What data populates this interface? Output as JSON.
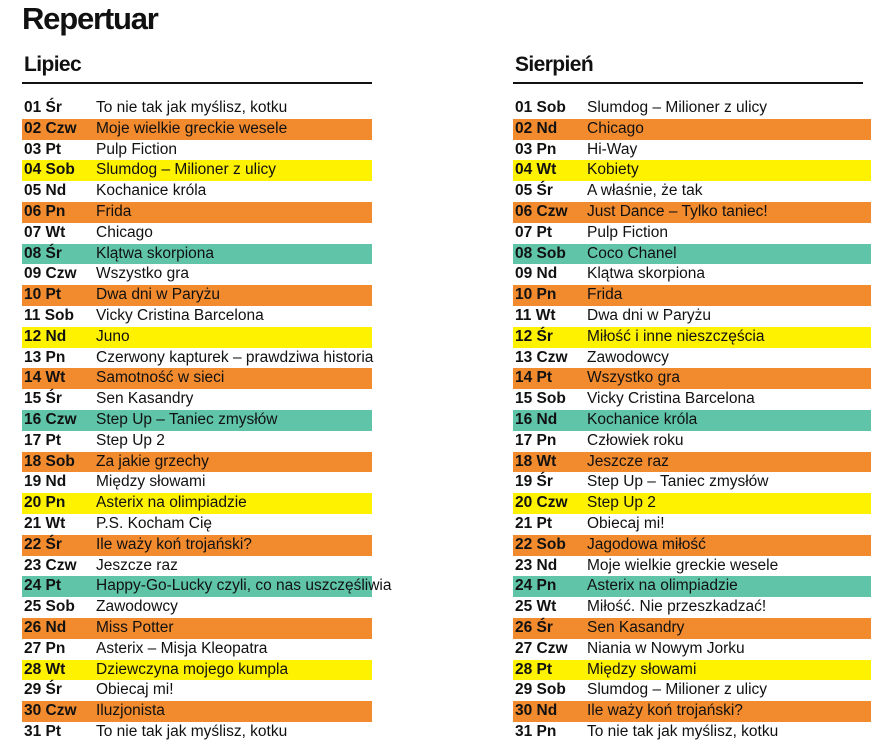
{
  "title": "Repertuar",
  "colors": {
    "orange": "#f28a2e",
    "yellow": "#fff200",
    "teal": "#5fc4a8"
  },
  "months": [
    {
      "name": "Lipiec",
      "rows": [
        {
          "day": "01 Śr",
          "film": "To nie tak jak myślisz, kotku",
          "hl": ""
        },
        {
          "day": "02 Czw",
          "film": "Moje wielkie greckie wesele",
          "hl": "orange"
        },
        {
          "day": "03 Pt",
          "film": "Pulp Fiction",
          "hl": ""
        },
        {
          "day": "04 Sob",
          "film": "Slumdog – Milioner z ulicy",
          "hl": "yellow"
        },
        {
          "day": "05 Nd",
          "film": "Kochanice króla",
          "hl": ""
        },
        {
          "day": "06 Pn",
          "film": "Frida",
          "hl": "orange"
        },
        {
          "day": "07 Wt",
          "film": "Chicago",
          "hl": ""
        },
        {
          "day": "08 Śr",
          "film": "Klątwa skorpiona",
          "hl": "teal"
        },
        {
          "day": "09 Czw",
          "film": "Wszystko gra",
          "hl": ""
        },
        {
          "day": "10 Pt",
          "film": "Dwa dni w Paryżu",
          "hl": "orange"
        },
        {
          "day": "11 Sob",
          "film": "Vicky Cristina Barcelona",
          "hl": ""
        },
        {
          "day": "12 Nd",
          "film": "Juno",
          "hl": "yellow"
        },
        {
          "day": "13 Pn",
          "film": "Czerwony kapturek – prawdziwa historia",
          "hl": ""
        },
        {
          "day": "14 Wt",
          "film": "Samotność w sieci",
          "hl": "orange"
        },
        {
          "day": "15 Śr",
          "film": "Sen Kasandry",
          "hl": ""
        },
        {
          "day": "16 Czw",
          "film": "Step Up – Taniec zmysłów",
          "hl": "teal"
        },
        {
          "day": "17 Pt",
          "film": "Step Up 2",
          "hl": ""
        },
        {
          "day": "18 Sob",
          "film": "Za jakie grzechy",
          "hl": "orange"
        },
        {
          "day": "19 Nd",
          "film": "Między słowami",
          "hl": ""
        },
        {
          "day": "20 Pn",
          "film": "Asterix na olimpiadzie",
          "hl": "yellow"
        },
        {
          "day": "21 Wt",
          "film": "P.S. Kocham Cię",
          "hl": ""
        },
        {
          "day": "22 Śr",
          "film": "Ile waży koń trojański?",
          "hl": "orange"
        },
        {
          "day": "23 Czw",
          "film": "Jeszcze raz",
          "hl": ""
        },
        {
          "day": "24 Pt",
          "film": "Happy-Go-Lucky czyli, co nas uszczęśliwia",
          "hl": "teal"
        },
        {
          "day": "25 Sob",
          "film": "Zawodowcy",
          "hl": ""
        },
        {
          "day": "26 Nd",
          "film": "Miss Potter",
          "hl": "orange"
        },
        {
          "day": "27 Pn",
          "film": "Asterix – Misja Kleopatra",
          "hl": ""
        },
        {
          "day": "28 Wt",
          "film": "Dziewczyna mojego kumpla",
          "hl": "yellow"
        },
        {
          "day": "29 Śr",
          "film": "Obiecaj mi!",
          "hl": ""
        },
        {
          "day": "30 Czw",
          "film": "Iluzjonista",
          "hl": "orange"
        },
        {
          "day": "31 Pt",
          "film": "To nie tak jak myślisz, kotku",
          "hl": ""
        }
      ]
    },
    {
      "name": "Sierpień",
      "rows": [
        {
          "day": "01 Sob",
          "film": "Slumdog – Milioner z ulicy",
          "hl": ""
        },
        {
          "day": "02 Nd",
          "film": "Chicago",
          "hl": "orange"
        },
        {
          "day": "03 Pn",
          "film": "Hi-Way",
          "hl": ""
        },
        {
          "day": "04 Wt",
          "film": "Kobiety",
          "hl": "yellow"
        },
        {
          "day": "05 Śr",
          "film": "A właśnie, że tak",
          "hl": ""
        },
        {
          "day": "06 Czw",
          "film": "Just Dance – Tylko taniec!",
          "hl": "orange"
        },
        {
          "day": "07 Pt",
          "film": "Pulp Fiction",
          "hl": ""
        },
        {
          "day": "08 Sob",
          "film": "Coco Chanel",
          "hl": "teal"
        },
        {
          "day": "09 Nd",
          "film": "Klątwa skorpiona",
          "hl": ""
        },
        {
          "day": "10 Pn",
          "film": "Frida",
          "hl": "orange"
        },
        {
          "day": "11 Wt",
          "film": "Dwa dni w Paryżu",
          "hl": ""
        },
        {
          "day": "12 Śr",
          "film": "Miłość i inne nieszczęścia",
          "hl": "yellow"
        },
        {
          "day": "13 Czw",
          "film": "Zawodowcy",
          "hl": ""
        },
        {
          "day": "14 Pt",
          "film": "Wszystko gra",
          "hl": "orange"
        },
        {
          "day": "15 Sob",
          "film": "Vicky Cristina Barcelona",
          "hl": ""
        },
        {
          "day": "16 Nd",
          "film": "Kochanice króla",
          "hl": "teal"
        },
        {
          "day": "17 Pn",
          "film": "Człowiek roku",
          "hl": ""
        },
        {
          "day": "18 Wt",
          "film": "Jeszcze raz",
          "hl": "orange"
        },
        {
          "day": "19 Śr",
          "film": "Step Up – Taniec zmysłów",
          "hl": ""
        },
        {
          "day": "20 Czw",
          "film": "Step Up 2",
          "hl": "yellow"
        },
        {
          "day": "21 Pt",
          "film": "Obiecaj mi!",
          "hl": ""
        },
        {
          "day": "22 Sob",
          "film": "Jagodowa miłość",
          "hl": "orange"
        },
        {
          "day": "23 Nd",
          "film": "Moje wielkie greckie wesele",
          "hl": ""
        },
        {
          "day": "24 Pn",
          "film": "Asterix na olimpiadzie",
          "hl": "teal"
        },
        {
          "day": "25 Wt",
          "film": "Miłość. Nie przeszkadzać!",
          "hl": ""
        },
        {
          "day": "26 Śr",
          "film": "Sen Kasandry",
          "hl": "orange"
        },
        {
          "day": "27 Czw",
          "film": "Niania w Nowym Jorku",
          "hl": ""
        },
        {
          "day": "28 Pt",
          "film": "Między słowami",
          "hl": "yellow"
        },
        {
          "day": "29 Sob",
          "film": "Slumdog – Milioner z ulicy",
          "hl": ""
        },
        {
          "day": "30 Nd",
          "film": "Ile waży koń trojański?",
          "hl": "orange"
        },
        {
          "day": "31 Pn",
          "film": "To nie tak jak myślisz, kotku",
          "hl": ""
        }
      ]
    }
  ]
}
